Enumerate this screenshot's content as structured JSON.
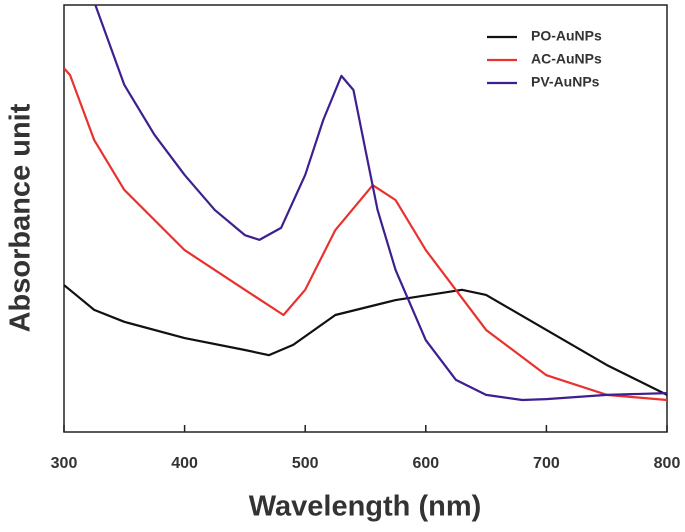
{
  "chart_data": {
    "type": "line",
    "x_label": "Wavelength (nm)",
    "y_label": "Absorbance unit",
    "xlim": [
      300,
      800
    ],
    "xticks": [
      300,
      400,
      500,
      600,
      700,
      800
    ],
    "ylim": [
      0,
      100
    ],
    "legend": "upper right",
    "series": [
      {
        "name": "PO-AuNPs",
        "color": "#111111",
        "x": [
          300,
          310,
          325,
          350,
          400,
          450,
          470,
          490,
          525,
          575,
          630,
          650,
          700,
          750,
          800
        ],
        "values": [
          34.4,
          32.1,
          28.6,
          25.8,
          22.0,
          19.2,
          18.0,
          20.4,
          27.4,
          30.9,
          33.3,
          32.1,
          23.9,
          15.7,
          8.7
        ]
      },
      {
        "name": "AC-AuNPs",
        "color": "#e8322e",
        "x": [
          300,
          305,
          325,
          350,
          400,
          450,
          482,
          500,
          525,
          556,
          575,
          600,
          650,
          700,
          750,
          800
        ],
        "values": [
          85.2,
          83.6,
          68.4,
          56.7,
          42.6,
          33.3,
          27.4,
          33.3,
          47.3,
          57.8,
          54.3,
          42.6,
          23.9,
          13.3,
          8.7,
          7.5
        ]
      },
      {
        "name": "PV-AuNPs",
        "color": "#3d1f8f",
        "x": [
          326,
          350,
          375,
          400,
          425,
          450,
          462,
          480,
          500,
          515,
          530,
          540,
          550,
          560,
          575,
          600,
          625,
          650,
          680,
          700,
          750,
          800
        ],
        "values": [
          100,
          81.3,
          69.6,
          60.2,
          52.0,
          46.1,
          45.0,
          47.8,
          60.2,
          73.1,
          83.4,
          80.1,
          66.0,
          52.0,
          37.9,
          21.5,
          12.2,
          8.7,
          7.5,
          7.7,
          8.7,
          9.1
        ]
      }
    ]
  }
}
